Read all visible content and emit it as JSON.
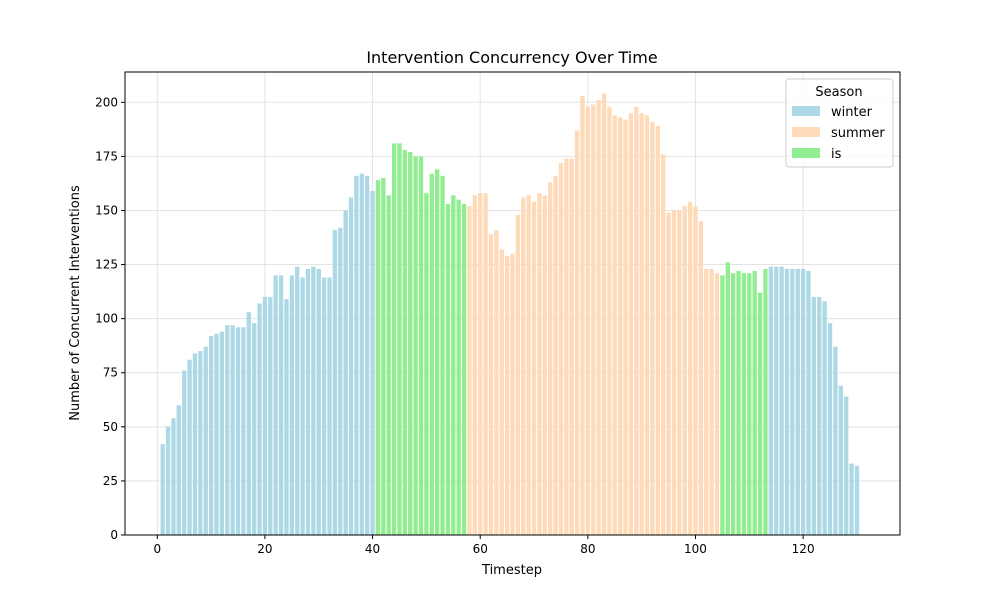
{
  "chart_data": {
    "type": "bar",
    "title": "Intervention Concurrency Over Time",
    "xlabel": "Timestep",
    "ylabel": "Number of Concurrent Interventions",
    "xlim": [
      -6,
      138
    ],
    "ylim": [
      0,
      214
    ],
    "xticks": [
      0,
      20,
      40,
      60,
      80,
      100,
      120
    ],
    "yticks": [
      0,
      25,
      50,
      75,
      100,
      125,
      150,
      175,
      200
    ],
    "grid": true,
    "legend": {
      "title": "Season",
      "position": "top-right"
    },
    "colors": {
      "winter": "#add8e6",
      "summer": "#ffdab9",
      "is": "#90ee90"
    },
    "series": [
      {
        "name": "winter",
        "x": [
          1,
          2,
          3,
          4,
          5,
          6,
          7,
          8,
          9,
          10,
          11,
          12,
          13,
          14,
          15,
          16,
          17,
          18,
          19,
          20,
          21,
          22,
          23,
          24,
          25,
          26,
          27,
          28,
          29,
          30,
          31,
          32,
          33,
          34,
          35,
          36,
          37,
          38,
          39,
          40,
          41,
          114,
          115,
          116,
          117,
          118,
          119,
          120,
          121,
          122,
          123,
          124,
          125,
          126,
          127,
          128,
          129,
          130,
          131
        ],
        "values": [
          42,
          50,
          54,
          60,
          76,
          81,
          84,
          85,
          87,
          92,
          93,
          94,
          97,
          97,
          96,
          96,
          103,
          98,
          107,
          110,
          110,
          120,
          120,
          109,
          120,
          124,
          119,
          123,
          124,
          123,
          119,
          119,
          141,
          142,
          150,
          156,
          166,
          167,
          166,
          159,
          160,
          124,
          124,
          124,
          123,
          123,
          123,
          123,
          122,
          110,
          110,
          108,
          98,
          87,
          69,
          64,
          33,
          32,
          null
        ]
      },
      {
        "name": "summer",
        "x": [
          58,
          59,
          60,
          61,
          62,
          63,
          64,
          65,
          66,
          67,
          68,
          69,
          70,
          71,
          72,
          73,
          74,
          75,
          76,
          77,
          78,
          79,
          80,
          81,
          82,
          83,
          84,
          85,
          86,
          87,
          88,
          89,
          90,
          91,
          92,
          93,
          94,
          95,
          96,
          97,
          98,
          99,
          100,
          101,
          102,
          103,
          104
        ],
        "values": [
          152,
          157,
          158,
          158,
          139,
          141,
          132,
          129,
          130,
          148,
          156,
          157,
          154,
          158,
          157,
          163,
          166,
          172,
          174,
          174,
          187,
          203,
          198,
          199,
          201,
          204,
          198,
          194,
          193,
          192,
          195,
          198,
          195,
          194,
          191,
          189,
          176,
          149,
          150,
          150,
          152,
          154,
          152,
          145,
          123,
          123,
          121
        ]
      },
      {
        "name": "is",
        "x": [
          41,
          42,
          43,
          44,
          45,
          46,
          47,
          48,
          49,
          50,
          51,
          52,
          53,
          54,
          55,
          56,
          57,
          105,
          106,
          107,
          108,
          109,
          110,
          111,
          112,
          113
        ],
        "values": [
          164,
          165,
          157,
          181,
          181,
          178,
          177,
          175,
          175,
          158,
          167,
          169,
          166,
          153,
          157,
          155,
          153,
          120,
          126,
          121,
          122,
          121,
          121,
          122,
          112,
          123
        ]
      }
    ]
  }
}
